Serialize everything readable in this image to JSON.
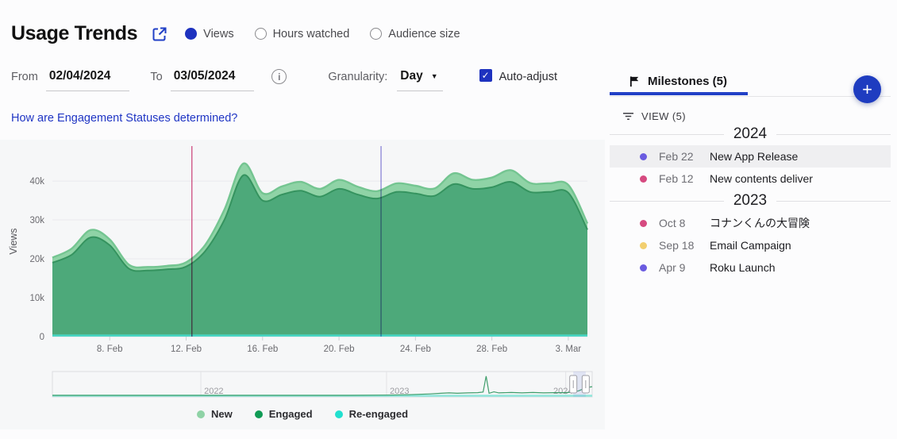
{
  "accent": "#2140c6",
  "header": {
    "title": "Usage Trends",
    "metric_options": [
      {
        "label": "Views",
        "selected": true
      },
      {
        "label": "Hours watched",
        "selected": false
      },
      {
        "label": "Audience size",
        "selected": false
      }
    ]
  },
  "controls": {
    "from_label": "From",
    "from_value": "02/04/2024",
    "to_label": "To",
    "to_value": "03/05/2024",
    "granularity_label": "Granularity:",
    "granularity_value": "Day",
    "auto_adjust_label": "Auto-adjust",
    "auto_adjust_checked": true,
    "checkmark": "✓"
  },
  "help_link": "How are Engagement Statuses determined?",
  "chart_data": {
    "type": "area",
    "stacked": true,
    "ylabel": "Views",
    "ylim": [
      0,
      49000
    ],
    "x_range": [
      "Feb 5 2024",
      "Mar 4 2024"
    ],
    "yticks": [
      {
        "v": 0,
        "label": "0"
      },
      {
        "v": 10000,
        "label": "10k"
      },
      {
        "v": 20000,
        "label": "20k"
      },
      {
        "v": 30000,
        "label": "30k"
      },
      {
        "v": 40000,
        "label": "40k"
      }
    ],
    "xticks": [
      {
        "d": 4,
        "label": "8. Feb"
      },
      {
        "d": 8,
        "label": "12. Feb"
      },
      {
        "d": 12,
        "label": "16. Feb"
      },
      {
        "d": 16,
        "label": "20. Feb"
      },
      {
        "d": 20,
        "label": "24. Feb"
      },
      {
        "d": 24,
        "label": "28. Feb"
      },
      {
        "d": 28,
        "label": "3. Mar"
      }
    ],
    "series": [
      {
        "name": "Engaged",
        "color": "#4da97a",
        "stroke": "#35935f",
        "values": [
          19000,
          21000,
          25500,
          23500,
          17500,
          17000,
          17300,
          18000,
          22000,
          30000,
          41500,
          35000,
          36500,
          37500,
          36000,
          38000,
          36500,
          35500,
          37200,
          36800,
          36200,
          39200,
          38000,
          38400,
          39800,
          37200,
          37200,
          37000,
          27500
        ]
      },
      {
        "name": "New",
        "color": "#8fd3a6",
        "stroke": "#74c591",
        "values": [
          1300,
          1600,
          1900,
          1500,
          1000,
          900,
          900,
          1100,
          1600,
          2600,
          3000,
          1900,
          2100,
          2300,
          2000,
          2300,
          2000,
          1900,
          2200,
          2000,
          1900,
          2800,
          2300,
          2500,
          3000,
          2300,
          2200,
          2000,
          1600
        ]
      },
      {
        "name": "Re-engaged",
        "color": "#49d6c3",
        "stroke": "#49d6c3",
        "values": [
          300,
          300,
          300,
          300,
          300,
          300,
          300,
          300,
          300,
          300,
          300,
          300,
          300,
          300,
          300,
          300,
          300,
          300,
          300,
          300,
          300,
          300,
          300,
          300,
          300,
          300,
          300,
          300,
          300
        ]
      }
    ],
    "markers": [
      {
        "x": 8.3,
        "color": "#d64a80",
        "milestone": "New contents deliver"
      },
      {
        "x": 18.2,
        "color": "#8d86dd",
        "milestone": "New App Release"
      }
    ]
  },
  "legend": [
    {
      "label": "New",
      "color": "#8fd3a6"
    },
    {
      "label": "Engaged",
      "color": "#0f9b55"
    },
    {
      "label": "Re-engaged",
      "color": "#21e0cf"
    }
  ],
  "navigator": {
    "years": [
      {
        "label": "2022",
        "line_f": 0.275,
        "label_f": 0.281
      },
      {
        "label": "2023",
        "line_f": 0.619,
        "label_f": 0.625
      },
      {
        "label": "2024",
        "line_f": 0.951,
        "label_f": 0.928
      }
    ],
    "line_color": "#3f9e6b",
    "band_color": "#8fe6da",
    "series_f": [
      [
        0,
        0
      ],
      [
        0.55,
        0
      ],
      [
        0.62,
        0.01
      ],
      [
        0.66,
        0.03
      ],
      [
        0.68,
        0.05
      ],
      [
        0.7,
        0.07
      ],
      [
        0.72,
        0.1
      ],
      [
        0.735,
        0.12
      ],
      [
        0.75,
        0.1
      ],
      [
        0.77,
        0.12
      ],
      [
        0.788,
        0.13
      ],
      [
        0.798,
        0.16
      ],
      [
        0.8035,
        0.93
      ],
      [
        0.809,
        0.1
      ],
      [
        0.818,
        0.17
      ],
      [
        0.827,
        0.12
      ],
      [
        0.85,
        0.14
      ],
      [
        0.87,
        0.12
      ],
      [
        0.89,
        0.14
      ],
      [
        0.91,
        0.12
      ],
      [
        0.93,
        0.13
      ],
      [
        0.95,
        0.13
      ],
      [
        0.962,
        0.15
      ],
      [
        0.975,
        0.22
      ],
      [
        0.99,
        0.38
      ],
      [
        1,
        0.42
      ]
    ],
    "selection": {
      "from_f": 0.965,
      "to_f": 0.988
    }
  },
  "milestones": {
    "tab_label": "Milestones (5)",
    "view_label": "VIEW (5)",
    "add_label": "+",
    "groups": [
      {
        "year": "2024",
        "items": [
          {
            "date": "Feb 22",
            "title": "New App Release",
            "color": "#6a5be0",
            "highlighted": true
          },
          {
            "date": "Feb 12",
            "title": "New contents deliver",
            "color": "#d64a80",
            "highlighted": false
          }
        ]
      },
      {
        "year": "2023",
        "items": [
          {
            "date": "Oct 8",
            "title": "コナンくんの大冒険",
            "color": "#d64a80",
            "highlighted": false
          },
          {
            "date": "Sep 18",
            "title": "Email Campaign",
            "color": "#f2cf6f",
            "highlighted": false
          },
          {
            "date": "Apr 9",
            "title": "Roku Launch",
            "color": "#6a5be0",
            "highlighted": false
          }
        ]
      }
    ]
  }
}
